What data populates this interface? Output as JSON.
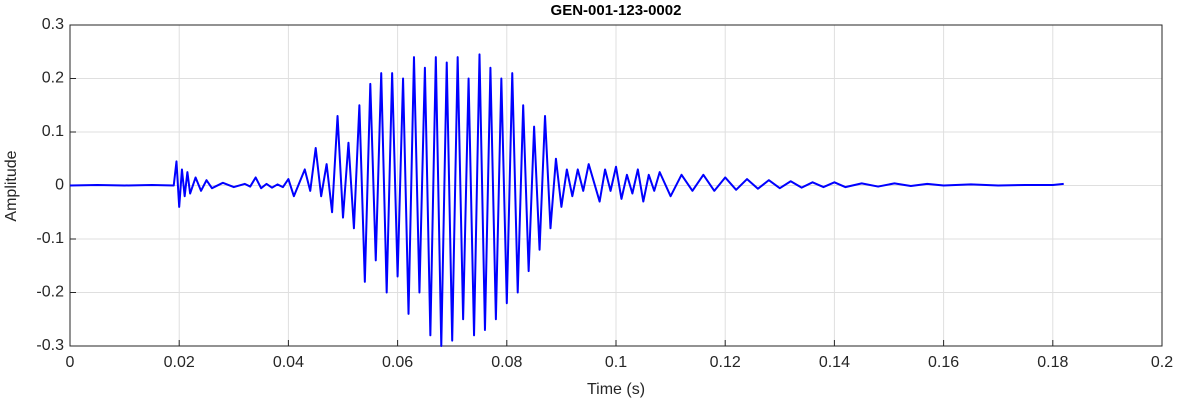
{
  "chart_data": {
    "type": "line",
    "title": "GEN-001-123-0002",
    "xlabel": "Time (s)",
    "ylabel": "Amplitude",
    "x": [
      0,
      0.005,
      0.01,
      0.015,
      0.019,
      0.0195,
      0.02,
      0.0205,
      0.021,
      0.0215,
      0.022,
      0.023,
      0.024,
      0.025,
      0.026,
      0.028,
      0.03,
      0.032,
      0.033,
      0.034,
      0.035,
      0.036,
      0.037,
      0.038,
      0.039,
      0.04,
      0.041,
      0.042,
      0.043,
      0.044,
      0.045,
      0.046,
      0.047,
      0.048,
      0.049,
      0.05,
      0.051,
      0.052,
      0.053,
      0.054,
      0.055,
      0.056,
      0.057,
      0.058,
      0.059,
      0.06,
      0.061,
      0.062,
      0.063,
      0.064,
      0.065,
      0.066,
      0.067,
      0.068,
      0.069,
      0.07,
      0.071,
      0.072,
      0.073,
      0.074,
      0.075,
      0.076,
      0.077,
      0.078,
      0.079,
      0.08,
      0.081,
      0.082,
      0.083,
      0.084,
      0.085,
      0.086,
      0.087,
      0.088,
      0.089,
      0.09,
      0.091,
      0.092,
      0.093,
      0.094,
      0.095,
      0.096,
      0.097,
      0.098,
      0.099,
      0.1,
      0.101,
      0.102,
      0.103,
      0.104,
      0.105,
      0.106,
      0.107,
      0.108,
      0.11,
      0.112,
      0.114,
      0.116,
      0.118,
      0.12,
      0.122,
      0.124,
      0.126,
      0.128,
      0.13,
      0.132,
      0.134,
      0.136,
      0.138,
      0.14,
      0.142,
      0.145,
      0.148,
      0.151,
      0.154,
      0.157,
      0.16,
      0.165,
      0.17,
      0.175,
      0.18,
      0.182
    ],
    "series": [
      {
        "color": "#0000ff",
        "values": [
          0,
          0.001,
          0,
          0.001,
          0,
          0.045,
          -0.04,
          0.03,
          -0.02,
          0.025,
          -0.015,
          0.015,
          -0.01,
          0.01,
          -0.005,
          0.005,
          -0.003,
          0.003,
          -0.002,
          0.015,
          -0.005,
          0.003,
          -0.004,
          0.002,
          -0.003,
          0.012,
          -0.02,
          0.005,
          0.03,
          -0.01,
          0.07,
          -0.02,
          0.04,
          -0.05,
          0.13,
          -0.06,
          0.08,
          -0.08,
          0.15,
          -0.18,
          0.19,
          -0.14,
          0.21,
          -0.2,
          0.21,
          -0.17,
          0.2,
          -0.24,
          0.24,
          -0.2,
          0.22,
          -0.28,
          0.24,
          -0.3,
          0.23,
          -0.29,
          0.24,
          -0.25,
          0.2,
          -0.28,
          0.245,
          -0.27,
          0.22,
          -0.25,
          0.2,
          -0.22,
          0.21,
          -0.2,
          0.15,
          -0.16,
          0.11,
          -0.12,
          0.13,
          -0.08,
          0.05,
          -0.04,
          0.03,
          -0.02,
          0.03,
          -0.01,
          0.04,
          0.005,
          -0.03,
          0.03,
          -0.01,
          0.035,
          -0.025,
          0.02,
          -0.015,
          0.03,
          -0.03,
          0.02,
          -0.01,
          0.025,
          -0.02,
          0.02,
          -0.01,
          0.02,
          -0.01,
          0.015,
          -0.008,
          0.012,
          -0.006,
          0.01,
          -0.005,
          0.008,
          -0.004,
          0.006,
          -0.003,
          0.006,
          -0.003,
          0.004,
          -0.002,
          0.004,
          -0.001,
          0.003,
          0,
          0.002,
          0,
          0.001,
          0.001,
          0.003
        ]
      }
    ],
    "xlim": [
      0,
      0.2
    ],
    "xticks": [
      0,
      0.02,
      0.04,
      0.06,
      0.08,
      0.1,
      0.12,
      0.14,
      0.16,
      0.18,
      0.2
    ],
    "ylim": [
      -0.3,
      0.3
    ],
    "yticks": [
      -0.3,
      -0.2,
      -0.1,
      0,
      0.1,
      0.2,
      0.3
    ],
    "grid": true
  }
}
